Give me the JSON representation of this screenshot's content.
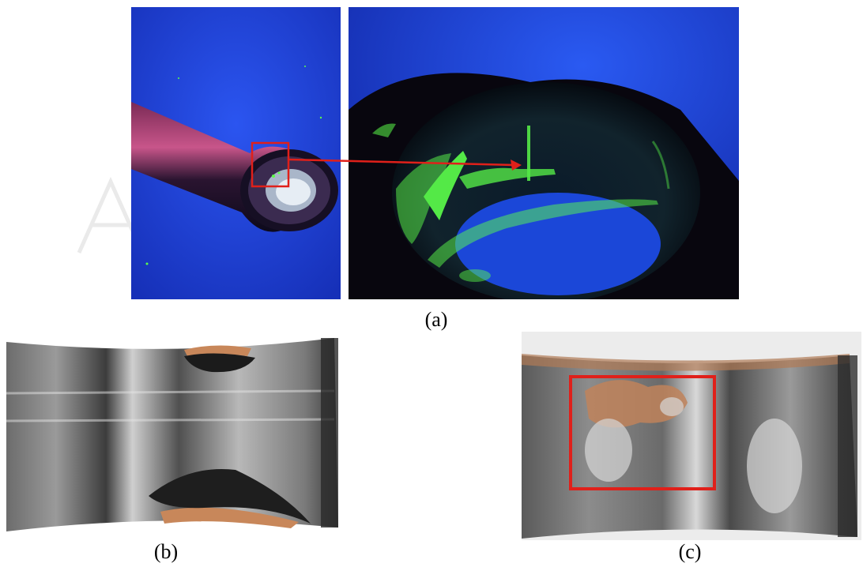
{
  "figure": {
    "captions": {
      "a": "(a)",
      "b": "(b)",
      "c": "(c)"
    },
    "colors": {
      "uv_background": "#1f3fd8",
      "fluorescent_indication": "#5cff4a",
      "annotation_red": "#e0201a",
      "metal_grey": "#8a8a8a",
      "copper": "#c8875a"
    }
  }
}
